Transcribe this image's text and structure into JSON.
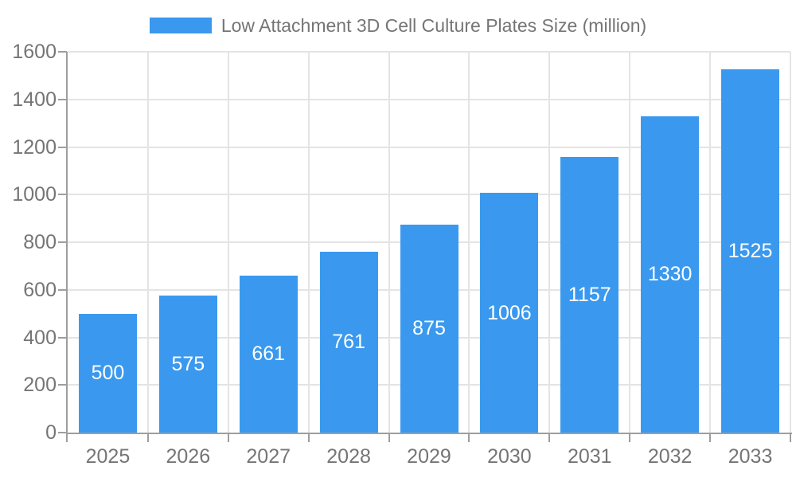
{
  "legend": {
    "label": "Low Attachment 3D Cell Culture Plates Size (million)",
    "swatch_color": "#3A99EE"
  },
  "chart_data": {
    "type": "bar",
    "title": "Low Attachment 3D Cell Culture Plates Size (million)",
    "categories": [
      "2025",
      "2026",
      "2027",
      "2028",
      "2029",
      "2030",
      "2031",
      "2032",
      "2033"
    ],
    "values": [
      500,
      575,
      661,
      761,
      875,
      1006,
      1157,
      1330,
      1525
    ],
    "xlabel": "",
    "ylabel": "",
    "ylim": [
      0,
      1600
    ],
    "yticks": [
      0,
      200,
      400,
      600,
      800,
      1000,
      1200,
      1400,
      1600
    ],
    "grid": true,
    "legend_position": "top",
    "value_labels_position": "inside-center",
    "colors": {
      "bar": "#3A99EE",
      "value_label": "#FFFFFF",
      "axis_line": "#9E9E9E",
      "grid_line": "#E4E4E4",
      "tick_label": "#757575",
      "title_text": "#757575",
      "background": "#FFFFFF"
    }
  }
}
